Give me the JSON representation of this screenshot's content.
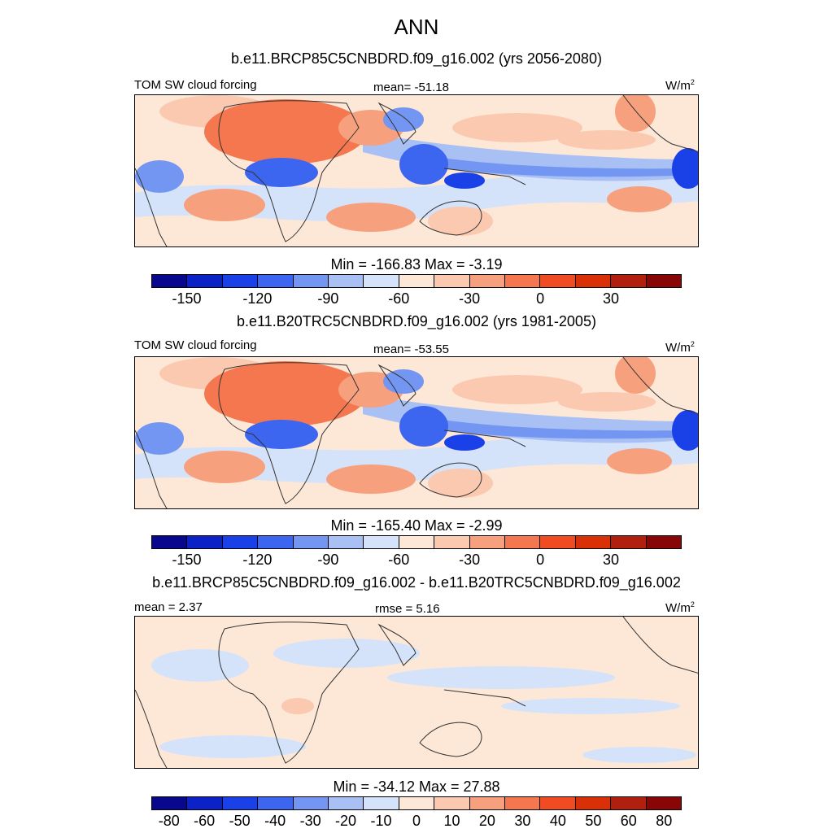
{
  "title": "ANN",
  "colors": {
    "main": [
      "#08088f",
      "#0a22c6",
      "#1a40e8",
      "#3c66f0",
      "#7396f2",
      "#a9c0f5",
      "#d4e3fa",
      "#fde8d8",
      "#fbc8b0",
      "#f7a07e",
      "#f4774f",
      "#f04b22",
      "#da3008",
      "#b1200e",
      "#880606"
    ],
    "land_line": "#333333"
  },
  "panels": [
    {
      "title": "b.e11.BRCP85C5CNBDRD.f09_g16.002 (yrs 2056-2080)",
      "left_label": "TOM SW cloud forcing",
      "center_label": "mean= -51.18",
      "unit": "W/m",
      "unit_sup": "2",
      "minmax": "Min = -166.83 Max =  -3.19",
      "ticks": [
        "-150",
        "-120",
        "-90",
        "-60",
        "-30",
        "0",
        "30"
      ]
    },
    {
      "title": "b.e11.B20TRC5CNBDRD.f09_g16.002 (yrs 1981-2005)",
      "left_label": "TOM SW cloud forcing",
      "center_label": "mean= -53.55",
      "unit": "W/m",
      "unit_sup": "2",
      "minmax": "Min = -165.40 Max =  -2.99",
      "ticks": [
        "-150",
        "-120",
        "-90",
        "-60",
        "-30",
        "0",
        "30"
      ]
    },
    {
      "title": "b.e11.BRCP85C5CNBDRD.f09_g16.002 - b.e11.B20TRC5CNBDRD.f09_g16.002",
      "left_label": "mean =   2.37",
      "center_label": "rmse =   5.16",
      "unit": "W/m",
      "unit_sup": "2",
      "minmax": "Min = -34.12 Max =  27.88",
      "ticks": [
        "-80",
        "-60",
        "-50",
        "-40",
        "-30",
        "-20",
        "-10",
        "0",
        "10",
        "20",
        "30",
        "40",
        "50",
        "60",
        "80"
      ]
    }
  ]
}
